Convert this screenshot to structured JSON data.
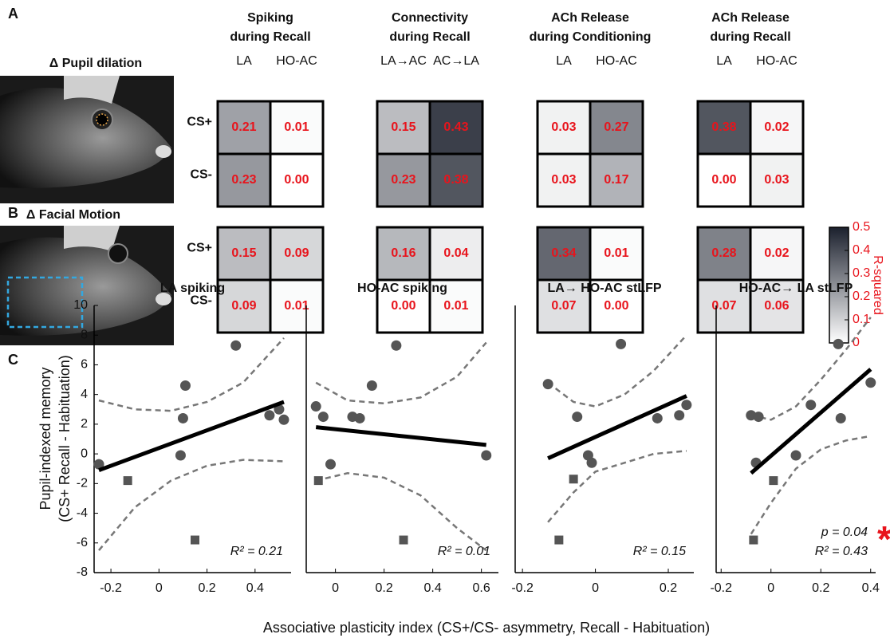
{
  "chart_data": [
    {
      "type": "heatmap",
      "columns": [
        {
          "title": [
            "Spiking",
            "during Recall"
          ],
          "categories": [
            "LA",
            "HO-AC"
          ]
        },
        {
          "title": [
            "Connectivity",
            "during Recall"
          ],
          "categories": [
            "LA→AC",
            "AC→LA"
          ]
        },
        {
          "title": [
            "ACh Release",
            "during Conditioning"
          ],
          "categories": [
            "LA",
            "HO-AC"
          ]
        },
        {
          "title": [
            "ACh Release",
            "during Recall"
          ],
          "categories": [
            "LA",
            "HO-AC"
          ]
        }
      ],
      "rows": [
        {
          "panel": "A",
          "title": "Δ Pupil dilation",
          "categories": [
            "CS+",
            "CS-"
          ],
          "matrices": [
            {
              "values": [
                [
                  0.21,
                  0.01
                ],
                [
                  0.23,
                  0.0
                ]
              ],
              "value_labels": [
                [
                  "0.21",
                  "0.01"
                ],
                [
                  "0.23",
                  "0.00"
                ]
              ]
            },
            {
              "values": [
                [
                  0.15,
                  0.43
                ],
                [
                  0.23,
                  0.38
                ]
              ],
              "value_labels": [
                [
                  "0.15",
                  "0.43"
                ],
                [
                  "0.23",
                  "0.38"
                ]
              ]
            },
            {
              "values": [
                [
                  0.03,
                  0.27
                ],
                [
                  0.03,
                  0.17
                ]
              ],
              "value_labels": [
                [
                  "0.03",
                  "0.27"
                ],
                [
                  "0.03",
                  "0.17"
                ]
              ]
            },
            {
              "values": [
                [
                  0.38,
                  0.02
                ],
                [
                  0.0,
                  0.03
                ]
              ],
              "value_labels": [
                [
                  "0.38",
                  "0.02"
                ],
                [
                  "0.00",
                  "0.03"
                ]
              ]
            }
          ]
        },
        {
          "panel": "B",
          "title": "Δ Facial Motion",
          "categories": [
            "CS+",
            "CS-"
          ],
          "matrices": [
            {
              "values": [
                [
                  0.15,
                  0.09
                ],
                [
                  0.09,
                  0.01
                ]
              ],
              "value_labels": [
                [
                  "0.15",
                  "0.09"
                ],
                [
                  "0.09",
                  "0.01"
                ]
              ]
            },
            {
              "values": [
                [
                  0.16,
                  0.04
                ],
                [
                  0.0,
                  0.01
                ]
              ],
              "value_labels": [
                [
                  "0.16",
                  "0.04"
                ],
                [
                  "0.00",
                  "0.01"
                ]
              ]
            },
            {
              "values": [
                [
                  0.34,
                  0.01
                ],
                [
                  0.07,
                  0.0
                ]
              ],
              "value_labels": [
                [
                  "0.34",
                  "0.01"
                ],
                [
                  "0.07",
                  "0.00"
                ]
              ]
            },
            {
              "values": [
                [
                  0.28,
                  0.02
                ],
                [
                  0.07,
                  0.06
                ]
              ],
              "value_labels": [
                [
                  "0.28",
                  "0.02"
                ],
                [
                  "0.07",
                  "0.06"
                ]
              ]
            }
          ]
        }
      ],
      "label_color": "#e8141c",
      "colorbar": {
        "label": "R-squared",
        "lim": [
          0,
          0.5
        ],
        "ticks": [
          0,
          0.1,
          0.2,
          0.3,
          0.4,
          0.5
        ],
        "colors": [
          "#ffffff",
          "#1b202d"
        ]
      }
    },
    {
      "type": "scatter",
      "title": "LA spiking",
      "circles": {
        "x": [
          -0.25,
          0.09,
          0.1,
          0.11,
          0.32,
          0.46,
          0.5,
          0.52
        ],
        "y": [
          -0.7,
          -0.1,
          2.4,
          4.6,
          7.3,
          2.6,
          3.0,
          2.3
        ]
      },
      "squares": {
        "x": [
          -0.13,
          0.15
        ],
        "y": [
          -1.8,
          -5.8
        ]
      },
      "fit": {
        "x": [
          -0.25,
          0.52
        ],
        "y": [
          -1.1,
          3.5
        ]
      },
      "ci_upper": {
        "x": [
          -0.25,
          -0.1,
          0.05,
          0.2,
          0.35,
          0.52
        ],
        "y": [
          3.6,
          3.0,
          2.9,
          3.5,
          4.8,
          7.8
        ]
      },
      "ci_lower": {
        "x": [
          -0.25,
          -0.1,
          0.05,
          0.2,
          0.35,
          0.52
        ],
        "y": [
          -6.5,
          -3.6,
          -1.8,
          -0.8,
          -0.4,
          -0.5
        ]
      },
      "annotations": [
        "R² = 0.21"
      ],
      "xlim": [
        -0.27,
        0.55
      ],
      "xticks": [
        -0.2,
        0,
        0.2,
        0.4
      ],
      "ylim": [
        -8,
        10
      ],
      "yticks": [
        -8,
        -6,
        -4,
        -2,
        0,
        2,
        4,
        6,
        8,
        10
      ]
    },
    {
      "type": "scatter",
      "title": "HO-AC spiking",
      "circles": {
        "x": [
          -0.08,
          -0.05,
          -0.02,
          0.07,
          0.1,
          0.15,
          0.25,
          0.62
        ],
        "y": [
          3.2,
          2.5,
          -0.7,
          2.5,
          2.4,
          4.6,
          7.3,
          -0.1
        ]
      },
      "squares": {
        "x": [
          -0.07,
          0.28
        ],
        "y": [
          -1.8,
          -5.8
        ]
      },
      "fit": {
        "x": [
          -0.08,
          0.62
        ],
        "y": [
          1.8,
          0.6
        ]
      },
      "ci_upper": {
        "x": [
          -0.08,
          0.05,
          0.2,
          0.35,
          0.5,
          0.62
        ],
        "y": [
          4.8,
          3.6,
          3.4,
          3.8,
          5.2,
          7.5
        ]
      },
      "ci_lower": {
        "x": [
          -0.08,
          0.05,
          0.2,
          0.35,
          0.5,
          0.62
        ],
        "y": [
          -1.8,
          -1.3,
          -1.6,
          -2.8,
          -5.0,
          -6.5
        ]
      },
      "annotations": [
        "R² = 0.01"
      ],
      "xlim": [
        -0.12,
        0.67
      ],
      "xticks": [
        0,
        0.2,
        0.4,
        0.6
      ],
      "ylim": [
        -8,
        10
      ]
    },
    {
      "type": "scatter",
      "title": "LA→ HO-AC stLFP",
      "circles": {
        "x": [
          -0.13,
          -0.05,
          -0.02,
          -0.01,
          0.07,
          0.17,
          0.23,
          0.25
        ],
        "y": [
          4.7,
          2.5,
          -0.1,
          -0.6,
          7.4,
          2.4,
          2.6,
          3.3
        ]
      },
      "squares": {
        "x": [
          -0.06,
          -0.1
        ],
        "y": [
          -1.7,
          -5.8
        ]
      },
      "fit": {
        "x": [
          -0.13,
          0.25
        ],
        "y": [
          -0.3,
          3.9
        ]
      },
      "ci_upper": {
        "x": [
          -0.13,
          -0.06,
          0.0,
          0.08,
          0.16,
          0.25
        ],
        "y": [
          4.8,
          3.5,
          3.2,
          4.0,
          5.6,
          8.0
        ]
      },
      "ci_lower": {
        "x": [
          -0.13,
          -0.06,
          0.0,
          0.08,
          0.16,
          0.25
        ],
        "y": [
          -4.6,
          -2.6,
          -1.2,
          -0.6,
          0.0,
          0.2
        ]
      },
      "annotations": [
        "R² = 0.15"
      ],
      "xlim": [
        -0.22,
        0.27
      ],
      "xticks": [
        -0.2,
        0,
        0.2
      ],
      "ylim": [
        -8,
        10
      ]
    },
    {
      "type": "scatter",
      "title": "HO-AC→ LA stLFP",
      "circles": {
        "x": [
          -0.08,
          -0.06,
          -0.05,
          0.1,
          0.16,
          0.27,
          0.28,
          0.4
        ],
        "y": [
          2.6,
          -0.6,
          2.5,
          -0.1,
          3.3,
          7.4,
          2.4,
          4.8
        ]
      },
      "squares": {
        "x": [
          0.01,
          -0.07
        ],
        "y": [
          -1.8,
          -5.8
        ]
      },
      "fit": {
        "x": [
          -0.08,
          0.4
        ],
        "y": [
          -1.3,
          5.7
        ]
      },
      "ci_upper": {
        "x": [
          -0.08,
          0.0,
          0.1,
          0.2,
          0.3,
          0.4
        ],
        "y": [
          2.6,
          2.3,
          3.2,
          5.0,
          7.0,
          9.2
        ]
      },
      "ci_lower": {
        "x": [
          -0.08,
          0.0,
          0.1,
          0.2,
          0.3,
          0.4
        ],
        "y": [
          -5.4,
          -3.3,
          -1.0,
          0.3,
          0.9,
          1.2
        ]
      },
      "annotations": [
        "p = 0.04",
        "R² = 0.43"
      ],
      "significance": "*",
      "xlim": [
        -0.22,
        0.42
      ],
      "xticks": [
        -0.2,
        0,
        0.2,
        0.4
      ],
      "ylim": [
        -8,
        10
      ]
    }
  ],
  "panel_C": {
    "panel": "C",
    "ylabel": [
      "Pupil-indexed memory",
      "(CS+ Recall - Habituation)"
    ],
    "xlabel": "Associative plasticity index (CS+/CS- asymmetry, Recall - Habituation)"
  }
}
